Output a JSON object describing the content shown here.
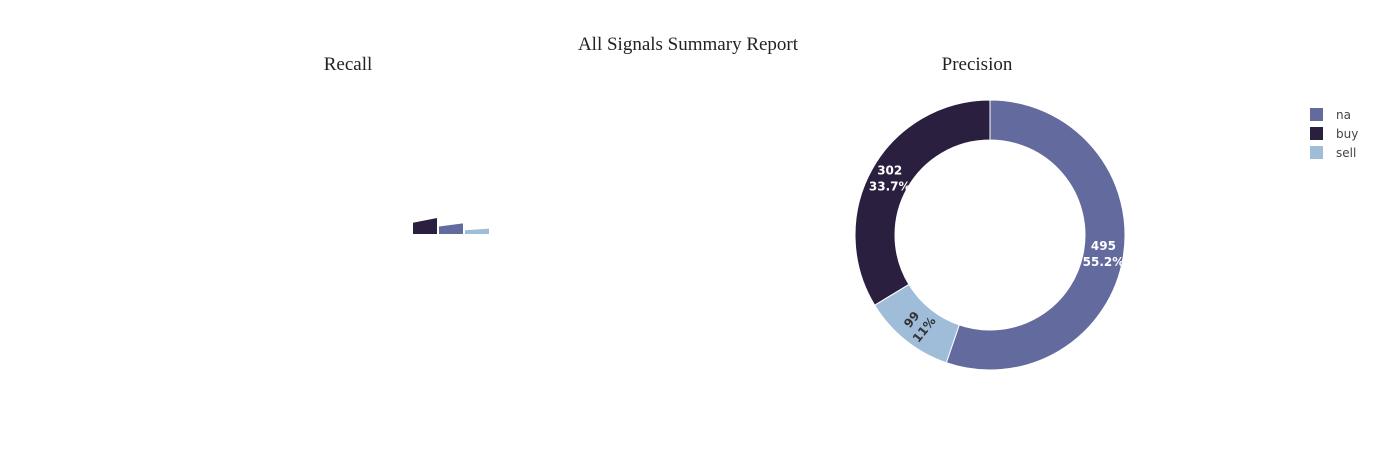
{
  "title": "All Signals Summary Report",
  "chart_data": [
    {
      "type": "pie",
      "title": "Recall",
      "categories": [
        "buy",
        "na",
        "sell"
      ],
      "values": [
        18,
        12,
        6
      ],
      "hole": true,
      "note": "rendered as three small wedges (barpolar-like)"
    },
    {
      "type": "pie",
      "title": "Precision",
      "categories": [
        "na",
        "buy",
        "sell"
      ],
      "values": [
        495,
        302,
        99
      ],
      "percent_labels": [
        "55.2%",
        "33.7%",
        "11%"
      ],
      "value_labels": [
        "495",
        "302",
        "99"
      ],
      "hole": true
    }
  ],
  "legend": {
    "position": "top-right",
    "items": [
      {
        "label": "na",
        "color": "#636a9e"
      },
      {
        "label": "buy",
        "color": "#2b1f3f"
      },
      {
        "label": "sell",
        "color": "#9fbcd9"
      }
    ]
  },
  "colors": {
    "na": "#636a9e",
    "buy": "#2b1f3f",
    "sell": "#9fbcd9"
  }
}
